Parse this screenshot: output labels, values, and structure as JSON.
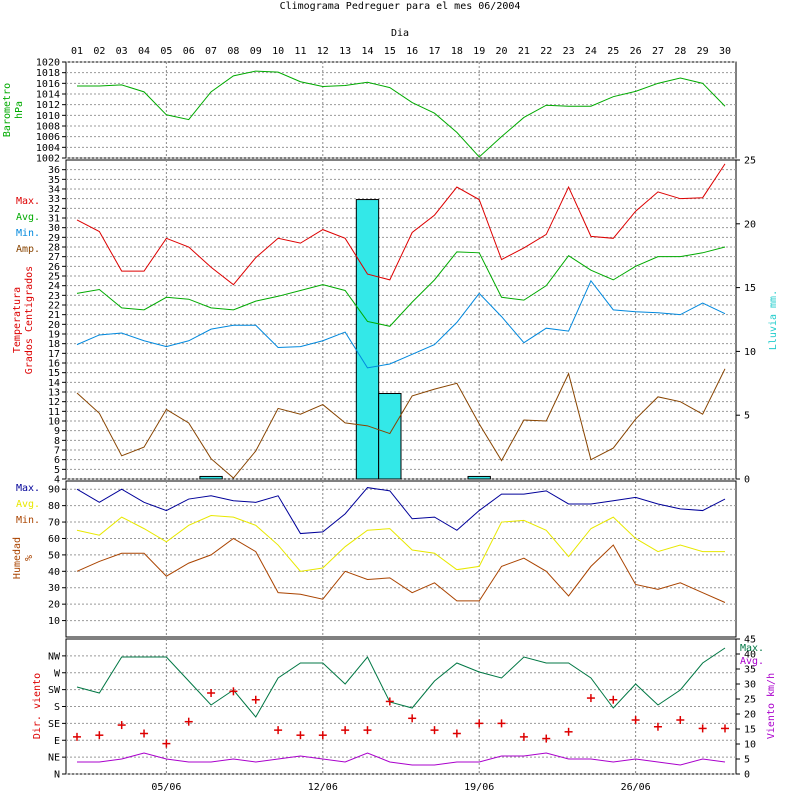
{
  "title": "Climograma Pedreguer para el mes 06/2004",
  "xaxis_title": "Dia",
  "chart_data": [
    {
      "type": "line",
      "panel": "barometer",
      "ylabel": [
        "Barometro",
        "hPa"
      ],
      "x": [
        1,
        2,
        3,
        4,
        5,
        6,
        7,
        8,
        9,
        10,
        11,
        12,
        13,
        14,
        15,
        16,
        17,
        18,
        19,
        20,
        21,
        22,
        23,
        24,
        25,
        26,
        27,
        28,
        29,
        30
      ],
      "ylim": [
        1002,
        1020
      ],
      "yticks": [
        1002,
        1004,
        1006,
        1008,
        1010,
        1012,
        1014,
        1016,
        1018,
        1020
      ],
      "series": [
        {
          "color": "#00aa00",
          "values": [
            1015.5,
            1015.5,
            1015.7,
            1014.4,
            1010.1,
            1009.2,
            1014.4,
            1017.4,
            1018.3,
            1018.1,
            1016.3,
            1015.4,
            1015.6,
            1016.2,
            1015.2,
            1012.4,
            1010.4,
            1006.8,
            1002.2,
            1006,
            1009.6,
            1011.9,
            1011.7,
            1011.7,
            1013.5,
            1014.5,
            1016,
            1017,
            1016,
            1011.7
          ]
        }
      ]
    },
    {
      "type": "line",
      "panel": "temperature",
      "ylabel": [
        "Temperatura",
        "Grados Centigrados"
      ],
      "y2label": "Lluvia mm.",
      "x": [
        1,
        2,
        3,
        4,
        5,
        6,
        7,
        8,
        9,
        10,
        11,
        12,
        13,
        14,
        15,
        16,
        17,
        18,
        19,
        20,
        21,
        22,
        23,
        24,
        25,
        26,
        27,
        28,
        29,
        30
      ],
      "ylim": [
        4,
        37
      ],
      "yticks": [
        4,
        5,
        6,
        7,
        8,
        9,
        10,
        11,
        12,
        13,
        14,
        15,
        16,
        17,
        18,
        19,
        20,
        21,
        22,
        23,
        24,
        25,
        26,
        27,
        28,
        29,
        30,
        31,
        32,
        33,
        34,
        35,
        36
      ],
      "y2lim": [
        0,
        25
      ],
      "y2ticks": [
        0,
        5,
        10,
        15,
        20,
        25
      ],
      "series": [
        {
          "name": "Max.",
          "color": "#dd0000",
          "values": [
            30.8,
            29.6,
            25.5,
            25.5,
            28.9,
            28,
            25.9,
            24.1,
            26.9,
            28.9,
            28.4,
            29.8,
            28.9,
            25.2,
            24.6,
            29.5,
            31.3,
            34.2,
            32.9,
            26.7,
            27.9,
            29.3,
            34.2,
            29.1,
            28.9,
            31.7,
            33.7,
            33,
            33.1,
            36.6
          ]
        },
        {
          "name": "Avg.",
          "color": "#00aa00",
          "values": [
            23.2,
            23.6,
            21.7,
            21.5,
            22.8,
            22.6,
            21.7,
            21.5,
            22.4,
            22.9,
            23.5,
            24.1,
            23.5,
            20.3,
            19.8,
            22.3,
            24.6,
            27.5,
            27.4,
            22.8,
            22.5,
            24,
            27.1,
            25.6,
            24.6,
            26,
            27,
            27,
            27.4,
            28
          ]
        },
        {
          "name": "Min.",
          "color": "#0088dd",
          "values": [
            17.9,
            18.9,
            19.1,
            18.3,
            17.7,
            18.3,
            19.5,
            19.9,
            19.9,
            17.6,
            17.7,
            18.3,
            19.2,
            15.5,
            15.9,
            16.9,
            17.9,
            20.2,
            23.2,
            20.8,
            18.1,
            19.6,
            19.3,
            24.5,
            21.5,
            21.3,
            21.2,
            21,
            22.2,
            21.1
          ]
        },
        {
          "name": "Amp.",
          "color": "#884400",
          "values": [
            12.9,
            10.8,
            6.4,
            7.3,
            11.2,
            9.8,
            6.1,
            4.1,
            6.9,
            11.3,
            10.7,
            11.7,
            9.8,
            9.5,
            8.7,
            12.6,
            13.3,
            13.9,
            9.7,
            5.9,
            10.1,
            10,
            14.9,
            6,
            7.2,
            10.2,
            12.5,
            12,
            10.7,
            15.4
          ]
        }
      ],
      "rain": {
        "color": "#33e8e8",
        "values": [
          0,
          0,
          0,
          0,
          0,
          0,
          0.2,
          0,
          0,
          0,
          0,
          0,
          0,
          21.9,
          6.7,
          0,
          0,
          0,
          0.2,
          0,
          0,
          0,
          0,
          0,
          0,
          0,
          0,
          0,
          0,
          0
        ]
      }
    },
    {
      "type": "line",
      "panel": "humidity",
      "ylabel": [
        "Humedad",
        "%"
      ],
      "x": [
        1,
        2,
        3,
        4,
        5,
        6,
        7,
        8,
        9,
        10,
        11,
        12,
        13,
        14,
        15,
        16,
        17,
        18,
        19,
        20,
        21,
        22,
        23,
        24,
        25,
        26,
        27,
        28,
        29,
        30
      ],
      "ylim": [
        0,
        95
      ],
      "yticks": [
        10,
        20,
        30,
        40,
        50,
        60,
        70,
        80,
        90
      ],
      "series": [
        {
          "name": "Max.",
          "color": "#000099",
          "values": [
            90,
            82,
            90,
            82,
            77,
            84,
            86,
            83,
            82,
            86,
            63,
            64,
            75,
            91,
            89,
            72,
            73,
            65,
            77,
            87,
            87,
            89,
            81,
            81,
            83,
            85,
            81,
            78,
            77,
            84
          ]
        },
        {
          "name": "Avg.",
          "color": "#e8e800",
          "values": [
            65,
            62,
            73,
            66,
            58,
            68,
            74,
            73,
            68,
            56,
            40,
            42,
            55,
            65,
            66,
            53,
            51,
            41,
            43,
            70,
            71,
            65,
            49,
            66,
            73,
            60,
            52,
            56,
            52,
            52
          ]
        },
        {
          "name": "Min.",
          "color": "#aa4400",
          "values": [
            40,
            46,
            51,
            51,
            37,
            45,
            50,
            60,
            52,
            27,
            26,
            23,
            40,
            35,
            36,
            27,
            33,
            22,
            22,
            43,
            48,
            40,
            25,
            43,
            56,
            32,
            29,
            33,
            27,
            21
          ]
        }
      ]
    },
    {
      "type": "line",
      "panel": "wind",
      "ylabel": "Dir. viento",
      "y2label": "Viento km/h",
      "x": [
        1,
        2,
        3,
        4,
        5,
        6,
        7,
        8,
        9,
        10,
        11,
        12,
        13,
        14,
        15,
        16,
        17,
        18,
        19,
        20,
        21,
        22,
        23,
        24,
        25,
        26,
        27,
        28,
        29,
        30
      ],
      "dir_labels": [
        "N",
        "NE",
        "E",
        "SE",
        "S",
        "SW",
        "W",
        "NW"
      ],
      "ylim": [
        0,
        8
      ],
      "y2lim": [
        0,
        45
      ],
      "y2ticks": [
        0,
        5,
        10,
        15,
        20,
        25,
        30,
        35,
        40,
        45
      ],
      "dir_series": {
        "marker": "+",
        "color": "#dd0000",
        "values": [
          2.2,
          2.3,
          2.9,
          2.4,
          1.8,
          3.1,
          4.8,
          4.9,
          4.4,
          2.6,
          2.3,
          2.3,
          2.6,
          2.6,
          4.3,
          3.3,
          2.6,
          2.4,
          3.0,
          3.0,
          2.2,
          2.1,
          2.5,
          4.5,
          4.4,
          3.2,
          2.8,
          3.2,
          2.7,
          2.7
        ]
      },
      "series": [
        {
          "name": "Max.",
          "color": "#007744",
          "values": [
            29,
            27,
            39,
            39,
            39,
            31,
            23,
            28,
            19,
            32,
            37,
            37,
            30,
            39,
            24,
            22,
            31,
            37,
            34,
            32,
            39,
            37,
            37,
            32,
            22,
            30,
            23,
            28,
            37,
            42
          ]
        },
        {
          "name": "Avg.",
          "color": "#aa00cc",
          "values": [
            4,
            4,
            5,
            7,
            5,
            4,
            4,
            5,
            4,
            5,
            6,
            5,
            4,
            7,
            4,
            3,
            3,
            4,
            4,
            6,
            6,
            7,
            5,
            5,
            4,
            5,
            4,
            3,
            5,
            4
          ]
        }
      ]
    }
  ],
  "xticks": [
    "01",
    "02",
    "03",
    "04",
    "05",
    "06",
    "07",
    "08",
    "09",
    "10",
    "11",
    "12",
    "13",
    "14",
    "15",
    "16",
    "17",
    "18",
    "19",
    "20",
    "21",
    "22",
    "23",
    "24",
    "25",
    "26",
    "27",
    "28",
    "29",
    "30"
  ],
  "week_labels": [
    {
      "day": 5,
      "label": "05/06"
    },
    {
      "day": 12,
      "label": "12/06"
    },
    {
      "day": 19,
      "label": "19/06"
    },
    {
      "day": 26,
      "label": "26/06"
    }
  ]
}
